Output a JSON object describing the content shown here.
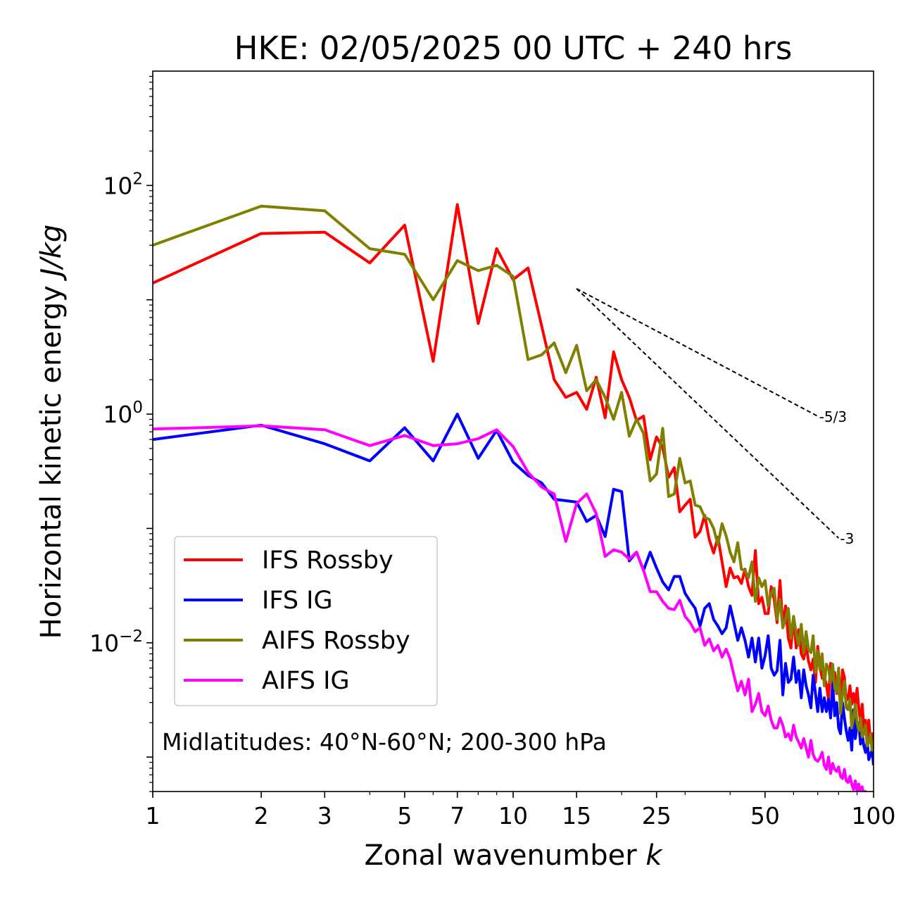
{
  "chart_data": {
    "type": "line",
    "title": "HKE: 02/05/2025 00 UTC + 240 hrs",
    "xlabel_main": "Zonal wavenumber ",
    "xlabel_italic": "k",
    "ylabel_main": "Horizontal kinetic energy ",
    "ylabel_italic": "J/kg",
    "xscale": "log",
    "yscale": "log",
    "xlim": [
      1,
      100
    ],
    "ylim": [
      0.0005,
      1000
    ],
    "x_ticks": [
      1,
      2,
      3,
      5,
      7,
      10,
      15,
      25,
      50,
      100
    ],
    "x_tick_labels": [
      "1",
      "2",
      "3",
      "5",
      "7",
      "10",
      "15",
      "25",
      "50",
      "100"
    ],
    "y_ticks": [
      {
        "value": 100,
        "base": "10",
        "exp": "2"
      },
      {
        "value": 1,
        "base": "10",
        "exp": "0"
      },
      {
        "value": 0.01,
        "base": "10",
        "exp": "−2"
      }
    ],
    "annotation": "Midlatitudes: 40°N-60°N; 200-300 hPa",
    "reference_lines": [
      {
        "label": "-5/3",
        "slope": -1.6667,
        "x": [
          15,
          70
        ],
        "y0": 12.5
      },
      {
        "label": "-3",
        "slope": -3,
        "x": [
          15,
          80
        ],
        "y0": 12.5
      }
    ],
    "legend_position": "lower-left",
    "series": [
      {
        "name": "IFS Rossby",
        "color": "#ff0000",
        "x": [
          1,
          2,
          3,
          4,
          5,
          6,
          7,
          8,
          9,
          10,
          11,
          12,
          13,
          14,
          15,
          16,
          17,
          18,
          19,
          20,
          21,
          22,
          23,
          24,
          25,
          26,
          27,
          28,
          29,
          30,
          31,
          32,
          33,
          34,
          35,
          36,
          37,
          38,
          39,
          40,
          41,
          42,
          43,
          44,
          45,
          46,
          47,
          48,
          49,
          50,
          51,
          52,
          53,
          54,
          55,
          56,
          57,
          58,
          59,
          60,
          61,
          62,
          63,
          64,
          65,
          66,
          67,
          68,
          69,
          70,
          71,
          72,
          73,
          74,
          75,
          76,
          77,
          78,
          79,
          80,
          81,
          82,
          83,
          84,
          85,
          86,
          87,
          88,
          89,
          90,
          91,
          92,
          93,
          94,
          95,
          96,
          97,
          98,
          99,
          100
        ],
        "y": [
          14,
          38,
          39,
          21,
          45,
          2.9,
          68,
          6.2,
          28,
          15,
          19,
          5.9,
          2.0,
          1.4,
          1.55,
          1.1,
          2.1,
          0.93,
          3.5,
          2.0,
          1.4,
          0.88,
          0.96,
          0.4,
          0.63,
          0.51,
          0.28,
          0.34,
          0.14,
          0.16,
          0.18,
          0.084,
          0.094,
          0.13,
          0.08,
          0.061,
          0.084,
          0.051,
          0.031,
          0.045,
          0.037,
          0.038,
          0.033,
          0.044,
          0.031,
          0.026,
          0.064,
          0.022,
          0.025,
          0.018,
          0.018,
          0.031,
          0.024,
          0.015,
          0.035,
          0.014,
          0.021,
          0.011,
          0.009,
          0.017,
          0.009,
          0.013,
          0.008,
          0.0072,
          0.0095,
          0.0069,
          0.0058,
          0.0072,
          0.0045,
          0.0093,
          0.0062,
          0.0049,
          0.005,
          0.0043,
          0.0032,
          0.0066,
          0.0044,
          0.0055,
          0.0036,
          0.0041,
          0.0029,
          0.0058,
          0.005,
          0.0031,
          0.0033,
          0.0042,
          0.0029,
          0.0036,
          0.0028,
          0.004,
          0.0027,
          0.002,
          0.0029,
          0.0018,
          0.0021,
          0.0013,
          0.0021,
          0.0014,
          0.0016,
          0.0011
        ]
      },
      {
        "name": "IFS IG",
        "color": "#0000ff",
        "x": [
          1,
          2,
          3,
          4,
          5,
          6,
          7,
          8,
          9,
          10,
          11,
          12,
          13,
          14,
          15,
          16,
          17,
          18,
          19,
          20,
          21,
          22,
          23,
          24,
          25,
          26,
          27,
          28,
          29,
          30,
          31,
          32,
          33,
          34,
          35,
          36,
          37,
          38,
          39,
          40,
          41,
          42,
          43,
          44,
          45,
          46,
          47,
          48,
          49,
          50,
          51,
          52,
          53,
          54,
          55,
          56,
          57,
          58,
          59,
          60,
          61,
          62,
          63,
          64,
          65,
          66,
          67,
          68,
          69,
          70,
          71,
          72,
          73,
          74,
          75,
          76,
          77,
          78,
          79,
          80,
          81,
          82,
          83,
          84,
          85,
          86,
          87,
          88,
          89,
          90,
          91,
          92,
          93,
          94,
          95,
          96,
          97,
          98,
          99,
          100
        ],
        "y": [
          0.6,
          0.8,
          0.55,
          0.39,
          0.76,
          0.39,
          1.0,
          0.41,
          0.72,
          0.38,
          0.29,
          0.25,
          0.18,
          0.175,
          0.17,
          0.115,
          0.13,
          0.085,
          0.22,
          0.21,
          0.052,
          0.062,
          0.043,
          0.062,
          0.045,
          0.034,
          0.029,
          0.038,
          0.038,
          0.027,
          0.023,
          0.02,
          0.014,
          0.02,
          0.022,
          0.016,
          0.014,
          0.012,
          0.0135,
          0.021,
          0.015,
          0.0105,
          0.0135,
          0.0105,
          0.0075,
          0.011,
          0.0068,
          0.011,
          0.006,
          0.0077,
          0.0115,
          0.006,
          0.0052,
          0.0057,
          0.0105,
          0.0035,
          0.0066,
          0.0045,
          0.0048,
          0.0075,
          0.0045,
          0.0057,
          0.0033,
          0.0058,
          0.0042,
          0.0035,
          0.0027,
          0.0052,
          0.0036,
          0.0025,
          0.004,
          0.0025,
          0.0033,
          0.0025,
          0.0032,
          0.0022,
          0.0045,
          0.0023,
          0.003,
          0.0018,
          0.0016,
          0.003,
          0.0022,
          0.0017,
          0.0014,
          0.0018,
          0.00115,
          0.0026,
          0.00145,
          0.0019,
          0.002,
          0.0013,
          0.0016,
          0.00125,
          0.0011,
          0.0014,
          0.00095,
          0.00105,
          0.00115,
          0.00085
        ]
      },
      {
        "name": "AIFS Rossby",
        "color": "#808000",
        "x": [
          1,
          2,
          3,
          4,
          5,
          6,
          7,
          8,
          9,
          10,
          11,
          12,
          13,
          14,
          15,
          16,
          17,
          18,
          19,
          20,
          21,
          22,
          23,
          24,
          25,
          26,
          27,
          28,
          29,
          30,
          31,
          32,
          33,
          34,
          35,
          36,
          37,
          38,
          39,
          40,
          41,
          42,
          43,
          44,
          45,
          46,
          47,
          48,
          49,
          50,
          51,
          52,
          53,
          54,
          55,
          56,
          57,
          58,
          59,
          60,
          61,
          62,
          63,
          64,
          65,
          66,
          67,
          68,
          69,
          70,
          71,
          72,
          73,
          74,
          75,
          76,
          77,
          78,
          79,
          80,
          81,
          82,
          83,
          84,
          85,
          86,
          87,
          88,
          89,
          90,
          91,
          92,
          93,
          94,
          95,
          96,
          97,
          98,
          99,
          100
        ],
        "y": [
          30,
          66,
          60,
          28,
          25,
          10,
          22,
          18,
          20,
          16,
          3.0,
          3.3,
          4.2,
          2.3,
          4.0,
          1.6,
          2.0,
          1.4,
          0.9,
          1.55,
          0.64,
          0.9,
          0.68,
          0.26,
          0.3,
          0.75,
          0.19,
          0.2,
          0.41,
          0.25,
          0.26,
          0.16,
          0.155,
          0.125,
          0.12,
          0.1,
          0.072,
          0.11,
          0.086,
          0.062,
          0.051,
          0.075,
          0.044,
          0.043,
          0.037,
          0.051,
          0.023,
          0.037,
          0.031,
          0.035,
          0.021,
          0.027,
          0.03,
          0.016,
          0.024,
          0.0135,
          0.016,
          0.02,
          0.011,
          0.017,
          0.012,
          0.0095,
          0.0145,
          0.0082,
          0.0125,
          0.0088,
          0.0082,
          0.0115,
          0.0055,
          0.0085,
          0.0058,
          0.008,
          0.0042,
          0.0065,
          0.006,
          0.0045,
          0.0065,
          0.004,
          0.0037,
          0.006,
          0.0024,
          0.0035,
          0.0046,
          0.0027,
          0.0026,
          0.0032,
          0.0018,
          0.0022,
          0.0029,
          0.002,
          0.0017,
          0.0022,
          0.0015,
          0.0016,
          0.0019,
          0.00125,
          0.00135,
          0.0016,
          0.00115,
          0.00115
        ]
      },
      {
        "name": "AIFS IG",
        "color": "#ff00ff",
        "x": [
          1,
          2,
          3,
          4,
          5,
          6,
          7,
          8,
          9,
          10,
          11,
          12,
          13,
          14,
          15,
          16,
          17,
          18,
          19,
          20,
          21,
          22,
          23,
          24,
          25,
          26,
          27,
          28,
          29,
          30,
          31,
          32,
          33,
          34,
          35,
          36,
          37,
          38,
          39,
          40,
          41,
          42,
          43,
          44,
          45,
          46,
          47,
          48,
          49,
          50,
          51,
          52,
          53,
          54,
          55,
          56,
          57,
          58,
          59,
          60,
          61,
          62,
          63,
          64,
          65,
          66,
          67,
          68,
          69,
          70,
          71,
          72,
          73,
          74,
          75,
          76,
          77,
          78,
          79,
          80,
          81,
          82,
          83,
          84,
          85,
          86,
          87,
          88,
          89,
          90,
          91,
          92,
          93,
          94,
          95,
          96,
          97,
          98,
          99,
          100
        ],
        "y": [
          0.74,
          0.79,
          0.73,
          0.53,
          0.65,
          0.53,
          0.55,
          0.61,
          0.73,
          0.52,
          0.31,
          0.23,
          0.2,
          0.077,
          0.165,
          0.2,
          0.135,
          0.057,
          0.065,
          0.062,
          0.054,
          0.062,
          0.043,
          0.028,
          0.028,
          0.023,
          0.02,
          0.0195,
          0.0235,
          0.017,
          0.015,
          0.0125,
          0.0135,
          0.0095,
          0.0108,
          0.0085,
          0.0095,
          0.0075,
          0.0088,
          0.0072,
          0.0052,
          0.0038,
          0.0046,
          0.0035,
          0.0048,
          0.0025,
          0.0029,
          0.0036,
          0.0025,
          0.0023,
          0.0028,
          0.0021,
          0.0018,
          0.0018,
          0.0022,
          0.0019,
          0.0015,
          0.0016,
          0.0014,
          0.0019,
          0.0015,
          0.00135,
          0.0012,
          0.00145,
          0.0012,
          0.001,
          0.0014,
          0.00105,
          0.00095,
          0.00092,
          0.00098,
          0.0011,
          0.00085,
          0.00078,
          0.001,
          0.00072,
          0.00088,
          0.00078,
          0.00075,
          0.00082,
          0.00068,
          0.00065,
          0.00078,
          0.00062,
          0.0006,
          0.00068,
          0.00058,
          0.00052,
          0.00062,
          0.0005,
          0.00058,
          0.00048,
          0.00055,
          0.00046,
          0.0005,
          0.00045,
          0.00049,
          0.00047,
          0.00046,
          0.00045
        ]
      }
    ]
  }
}
